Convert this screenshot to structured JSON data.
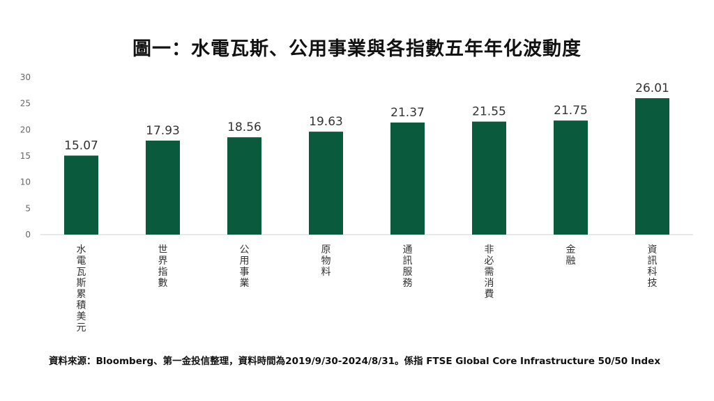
{
  "chart_data": {
    "type": "bar",
    "title": "圖一：水電瓦斯、公用事業與各指數五年年化波動度",
    "categories": [
      "水電瓦斯累積美元",
      "世界指數",
      "公用事業",
      "原物料",
      "通訊服務",
      "非必需消費",
      "金融",
      "資訊科技"
    ],
    "values": [
      15.07,
      17.93,
      18.56,
      19.63,
      21.37,
      21.55,
      21.75,
      26.01
    ],
    "value_labels": [
      "15.07",
      "17.93",
      "18.56",
      "19.63",
      "21.37",
      "21.55",
      "21.75",
      "26.01"
    ],
    "ylim": [
      0,
      30
    ],
    "yticks": [
      0,
      5,
      10,
      15,
      20,
      25,
      30
    ],
    "grid": false,
    "bar_color": "#0a5a3e",
    "xlabel": "",
    "ylabel": ""
  },
  "footer": {
    "source": "資料來源：Bloomberg、第一金投信整理，資料時間為2019/9/30-2024/8/31。係指 FTSE Global Core Infrastructure 50/50 Index"
  }
}
